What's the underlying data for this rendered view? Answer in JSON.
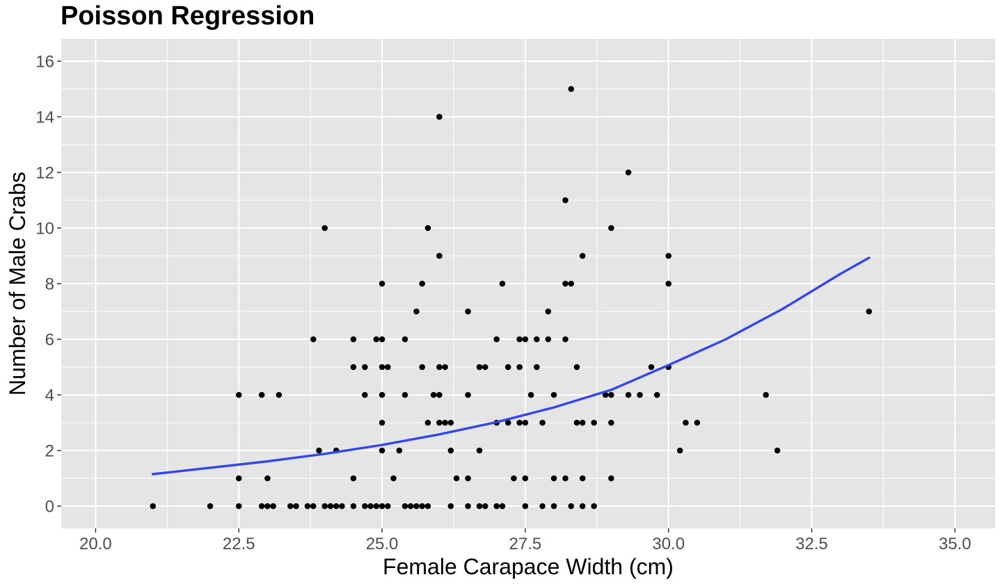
{
  "chart_data": {
    "type": "scatter",
    "title": "Poisson Regression",
    "xlabel": "Female Carapace Width (cm)",
    "ylabel": "Number of Male Crabs",
    "xlim": [
      19.4,
      35.7
    ],
    "ylim": [
      -0.8,
      16.8
    ],
    "x_ticks": [
      20.0,
      22.5,
      25.0,
      27.5,
      30.0,
      32.5,
      35.0
    ],
    "x_tick_labels": [
      "20.0",
      "22.5",
      "25.0",
      "27.5",
      "30.0",
      "32.5",
      "35.0"
    ],
    "y_ticks": [
      0,
      2,
      4,
      6,
      8,
      10,
      12,
      14,
      16
    ],
    "y_tick_labels": [
      "0",
      "2",
      "4",
      "6",
      "8",
      "10",
      "12",
      "14",
      "16"
    ],
    "grid": true,
    "colors": {
      "panel_background": "#e5e5e5",
      "grid": "#ffffff",
      "points": "#000000",
      "fit_line": "#3345ee"
    },
    "points": [
      [
        21.0,
        0
      ],
      [
        22.0,
        0
      ],
      [
        22.5,
        0
      ],
      [
        22.5,
        1
      ],
      [
        22.5,
        4
      ],
      [
        22.9,
        0
      ],
      [
        22.9,
        4
      ],
      [
        23.0,
        0
      ],
      [
        23.0,
        1
      ],
      [
        23.1,
        0
      ],
      [
        23.2,
        4
      ],
      [
        23.4,
        0
      ],
      [
        23.5,
        0
      ],
      [
        23.7,
        0
      ],
      [
        23.8,
        0
      ],
      [
        23.8,
        6
      ],
      [
        23.9,
        2
      ],
      [
        24.0,
        0
      ],
      [
        24.0,
        10
      ],
      [
        24.1,
        0
      ],
      [
        24.2,
        0
      ],
      [
        24.2,
        2
      ],
      [
        24.3,
        0
      ],
      [
        24.5,
        0
      ],
      [
        24.5,
        1
      ],
      [
        24.5,
        5
      ],
      [
        24.5,
        6
      ],
      [
        24.7,
        0
      ],
      [
        24.7,
        4
      ],
      [
        24.7,
        5
      ],
      [
        24.8,
        0
      ],
      [
        24.9,
        0
      ],
      [
        24.9,
        6
      ],
      [
        25.0,
        0
      ],
      [
        25.0,
        2
      ],
      [
        25.0,
        3
      ],
      [
        25.0,
        4
      ],
      [
        25.0,
        5
      ],
      [
        25.0,
        6
      ],
      [
        25.0,
        8
      ],
      [
        25.1,
        0
      ],
      [
        25.1,
        5
      ],
      [
        25.2,
        1
      ],
      [
        25.3,
        2
      ],
      [
        25.4,
        0
      ],
      [
        25.4,
        4
      ],
      [
        25.4,
        6
      ],
      [
        25.5,
        0
      ],
      [
        25.6,
        0
      ],
      [
        25.6,
        7
      ],
      [
        25.7,
        0
      ],
      [
        25.7,
        5
      ],
      [
        25.7,
        8
      ],
      [
        25.8,
        0
      ],
      [
        25.8,
        3
      ],
      [
        25.8,
        10
      ],
      [
        25.9,
        4
      ],
      [
        26.0,
        3
      ],
      [
        26.0,
        4
      ],
      [
        26.0,
        5
      ],
      [
        26.0,
        9
      ],
      [
        26.0,
        14
      ],
      [
        26.1,
        3
      ],
      [
        26.1,
        5
      ],
      [
        26.2,
        0
      ],
      [
        26.2,
        2
      ],
      [
        26.2,
        3
      ],
      [
        26.3,
        1
      ],
      [
        26.5,
        0
      ],
      [
        26.5,
        1
      ],
      [
        26.5,
        4
      ],
      [
        26.5,
        7
      ],
      [
        26.7,
        0
      ],
      [
        26.7,
        2
      ],
      [
        26.7,
        5
      ],
      [
        26.8,
        0
      ],
      [
        26.8,
        5
      ],
      [
        27.0,
        0
      ],
      [
        27.0,
        3
      ],
      [
        27.0,
        6
      ],
      [
        27.1,
        0
      ],
      [
        27.1,
        8
      ],
      [
        27.2,
        3
      ],
      [
        27.2,
        5
      ],
      [
        27.3,
        1
      ],
      [
        27.4,
        3
      ],
      [
        27.4,
        5
      ],
      [
        27.4,
        6
      ],
      [
        27.5,
        0
      ],
      [
        27.5,
        1
      ],
      [
        27.5,
        3
      ],
      [
        27.5,
        6
      ],
      [
        27.6,
        4
      ],
      [
        27.7,
        5
      ],
      [
        27.7,
        6
      ],
      [
        27.8,
        0
      ],
      [
        27.8,
        3
      ],
      [
        27.9,
        6
      ],
      [
        27.9,
        7
      ],
      [
        28.0,
        0
      ],
      [
        28.0,
        1
      ],
      [
        28.0,
        4
      ],
      [
        28.2,
        1
      ],
      [
        28.2,
        6
      ],
      [
        28.2,
        8
      ],
      [
        28.2,
        11
      ],
      [
        28.3,
        0
      ],
      [
        28.3,
        8
      ],
      [
        28.3,
        15
      ],
      [
        28.4,
        3
      ],
      [
        28.4,
        5
      ],
      [
        28.5,
        0
      ],
      [
        28.5,
        1
      ],
      [
        28.5,
        3
      ],
      [
        28.5,
        9
      ],
      [
        28.7,
        0
      ],
      [
        28.7,
        3
      ],
      [
        28.9,
        4
      ],
      [
        29.0,
        1
      ],
      [
        29.0,
        3
      ],
      [
        29.0,
        4
      ],
      [
        29.0,
        10
      ],
      [
        29.3,
        4
      ],
      [
        29.3,
        12
      ],
      [
        29.5,
        4
      ],
      [
        29.7,
        5
      ],
      [
        29.8,
        4
      ],
      [
        30.0,
        5
      ],
      [
        30.0,
        8
      ],
      [
        30.0,
        9
      ],
      [
        30.2,
        2
      ],
      [
        30.3,
        3
      ],
      [
        30.5,
        3
      ],
      [
        31.7,
        4
      ],
      [
        31.9,
        2
      ],
      [
        33.5,
        7
      ]
    ],
    "fit_line": {
      "x": [
        21.0,
        22.0,
        23.0,
        24.0,
        25.0,
        26.0,
        27.0,
        28.0,
        29.0,
        30.0,
        31.0,
        32.0,
        33.0,
        33.5
      ],
      "y": [
        1.15,
        1.38,
        1.61,
        1.88,
        2.2,
        2.58,
        3.02,
        3.55,
        4.18,
        5.07,
        6.0,
        7.1,
        8.35,
        8.93
      ]
    }
  }
}
